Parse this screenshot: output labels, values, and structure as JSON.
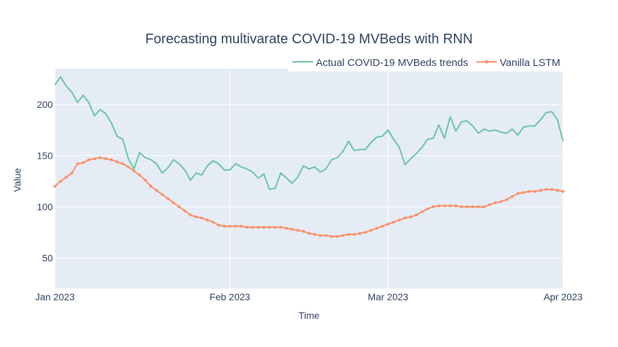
{
  "chart_data": {
    "type": "line",
    "title": "Forecasting multivarate COVID-19 MVBeds with RNN",
    "xlabel": "Time",
    "ylabel": "Value",
    "x_start": "2023-01-01",
    "x_range": [
      "2023-01-01",
      "2023-04-01"
    ],
    "ylim": [
      20,
      235
    ],
    "x_ticks": [
      {
        "date": "2023-01-01",
        "label": "Jan 2023"
      },
      {
        "date": "2023-02-01",
        "label": "Feb 2023"
      },
      {
        "date": "2023-03-01",
        "label": "Mar 2023"
      },
      {
        "date": "2023-04-01",
        "label": "Apr 2023"
      }
    ],
    "y_ticks": [
      {
        "value": 50,
        "label": "50"
      },
      {
        "value": 100,
        "label": "100"
      },
      {
        "value": 150,
        "label": "150"
      },
      {
        "value": 200,
        "label": "200"
      }
    ],
    "grid": true,
    "legend_position": "top-right",
    "background": "#e5ecf6",
    "series": [
      {
        "name": "Actual COVID-19 MVBeds trends",
        "color": "#66c2a5",
        "markers": false,
        "values": [
          219,
          227,
          218,
          212,
          202,
          209,
          202,
          189,
          195,
          191,
          182,
          169,
          166,
          147,
          137,
          153,
          148,
          146,
          142,
          133,
          138,
          146,
          142,
          136,
          126,
          133,
          131,
          140,
          145,
          142,
          136,
          136,
          142,
          139,
          137,
          134,
          128,
          132,
          117,
          118,
          133,
          128,
          123,
          129,
          140,
          137,
          139,
          134,
          137,
          146,
          148,
          154,
          164,
          155,
          156,
          156,
          163,
          168,
          169,
          175,
          166,
          158,
          141,
          147,
          152,
          158,
          166,
          167,
          180,
          167,
          188,
          174,
          183,
          184,
          179,
          172,
          176,
          174,
          175,
          173,
          172,
          176,
          170,
          178,
          179,
          179,
          185,
          192,
          193,
          185,
          164
        ]
      },
      {
        "name": "Vanilla LSTM",
        "color": "#fc8d62",
        "markers": true,
        "values": [
          120,
          125,
          129,
          133,
          142,
          143,
          146,
          147,
          148,
          147,
          146,
          144,
          142,
          139,
          135,
          131,
          126,
          120,
          116,
          112,
          108,
          104,
          100,
          96,
          92,
          90,
          89,
          87,
          85,
          82,
          81,
          81,
          81,
          81,
          80,
          80,
          80,
          80,
          80,
          80,
          80,
          79,
          78,
          77,
          76,
          74,
          73,
          72,
          72,
          71,
          71,
          72,
          73,
          73,
          74,
          75,
          77,
          79,
          81,
          83,
          85,
          87,
          89,
          90,
          92,
          95,
          98,
          100,
          101,
          101,
          101,
          101,
          100,
          100,
          100,
          100,
          100,
          102,
          104,
          105,
          107,
          110,
          113,
          114,
          115,
          115,
          116,
          117,
          117,
          116,
          115
        ]
      }
    ]
  }
}
